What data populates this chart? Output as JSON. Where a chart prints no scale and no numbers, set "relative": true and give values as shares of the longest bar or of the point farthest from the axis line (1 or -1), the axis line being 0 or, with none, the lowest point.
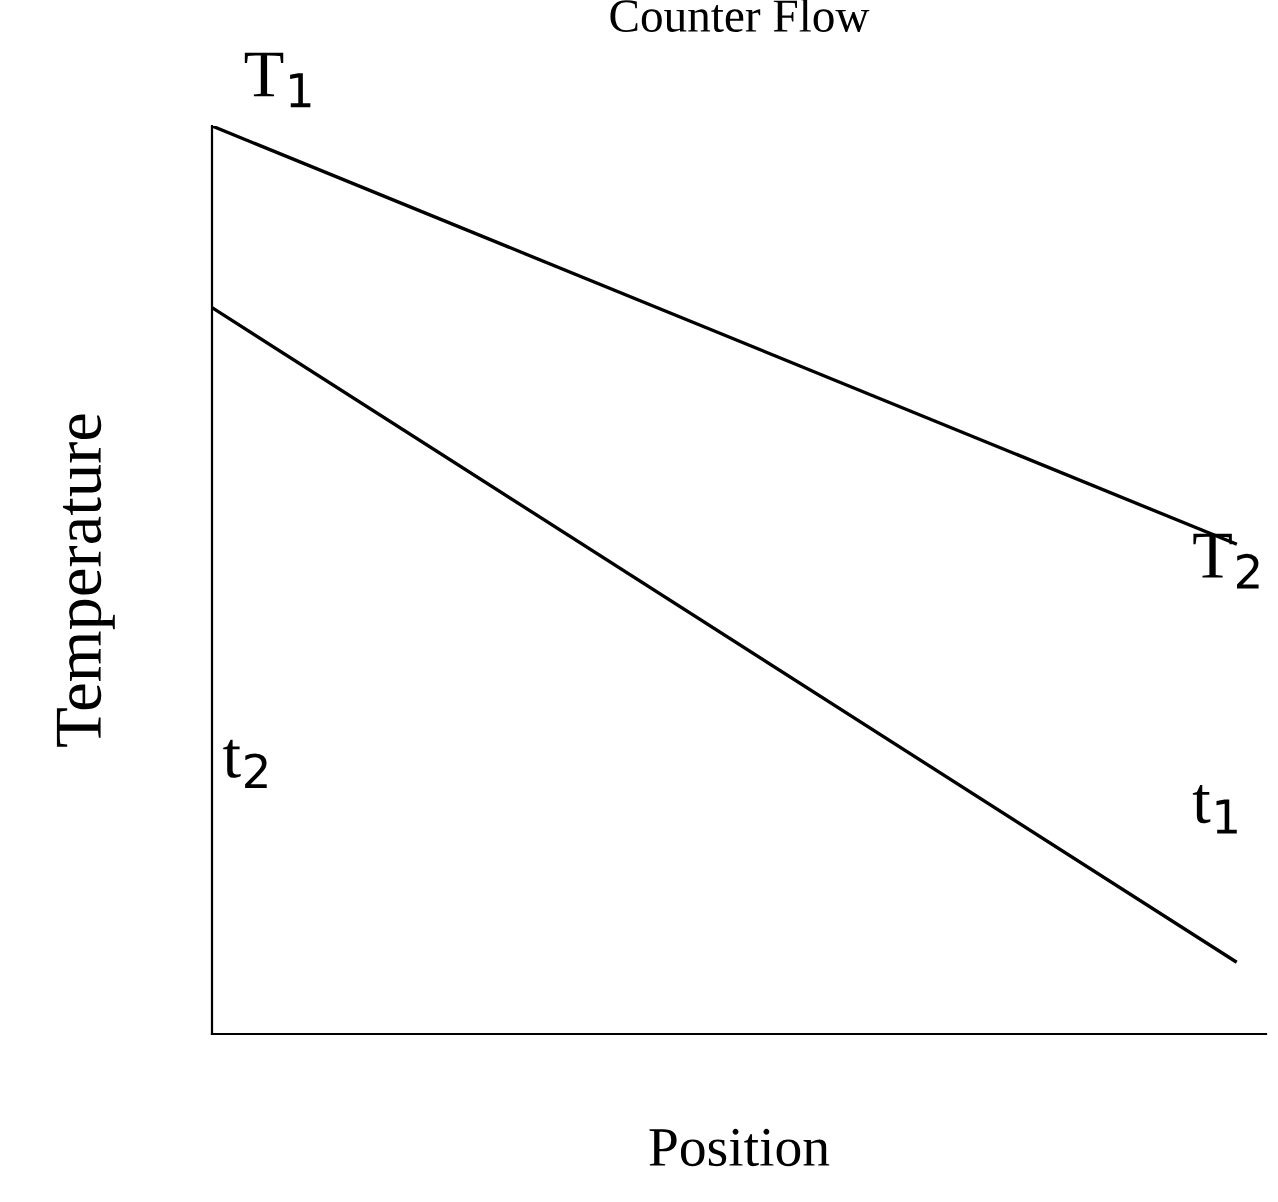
{
  "chart_data": {
    "type": "line",
    "title": "Counter Flow",
    "xlabel": "Position",
    "ylabel": "Temperature",
    "relative": true,
    "categories": [
      null,
      null
    ],
    "series": [
      {
        "color": "#000000",
        "values": [
          1,
          0.54
        ]
      },
      {
        "color": "#000000",
        "values": [
          0.8,
          0.08
        ]
      }
    ],
    "annotations": [
      "T$_{1}$",
      "T$_{2}$",
      "t$_{2}$",
      "t$_{1}$"
    ],
    "grid": false,
    "legend": false,
    "marker": "none",
    "line_style": "solid"
  }
}
